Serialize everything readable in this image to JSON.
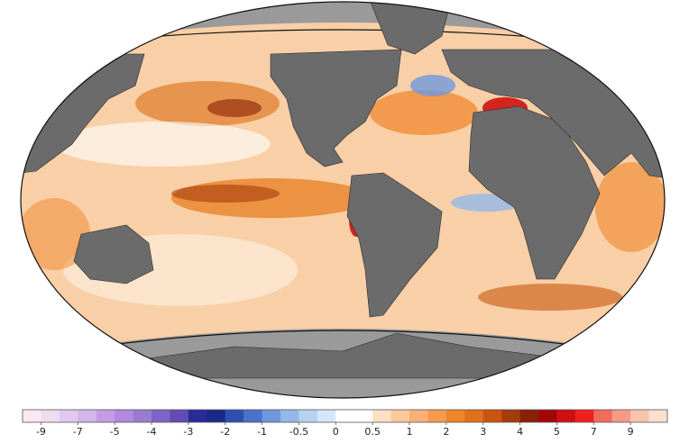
{
  "colorbar": {
    "ticks": [
      -9,
      -7,
      -5,
      -4,
      -3,
      -2,
      -1,
      -0.5,
      0,
      0.5,
      1,
      2,
      3,
      4,
      5,
      7,
      9
    ],
    "colors": [
      "#fbe8f2",
      "#eedcf0",
      "#e0c8ee",
      "#d3b6ea",
      "#c39de4",
      "#b189de",
      "#9a7bd4",
      "#7f64c8",
      "#5e4db8",
      "#2a2a9c",
      "#1a2a8c",
      "#2e4fb0",
      "#4a72c8",
      "#6f98dc",
      "#93b8ea",
      "#b6d2f2",
      "#d6e6f8",
      "#ffffff",
      "#ffffff",
      "#fde0c6",
      "#fbc99a",
      "#f8b078",
      "#f59a50",
      "#f0852a",
      "#e0701a",
      "#c8560e",
      "#a63c08",
      "#8a2004",
      "#a00808",
      "#d01010",
      "#f02020",
      "#f26b5c",
      "#f59a86",
      "#f8c4ae",
      "#fbe0d0"
    ]
  }
}
